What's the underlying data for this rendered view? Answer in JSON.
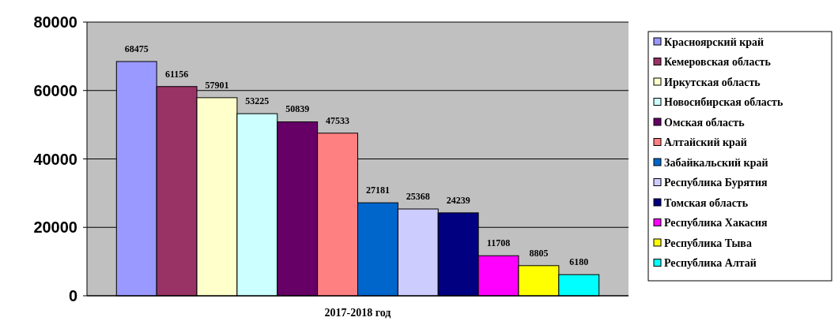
{
  "chart_data": {
    "type": "bar",
    "categories": [
      "2017-2018 год"
    ],
    "series": [
      {
        "name": "Красноярский край",
        "color": "#9999ff",
        "values": [
          68475
        ]
      },
      {
        "name": "Кемеровская область",
        "color": "#993366",
        "values": [
          61156
        ]
      },
      {
        "name": "Иркутская область",
        "color": "#ffffcc",
        "values": [
          57901
        ]
      },
      {
        "name": "Новосибирская область",
        "color": "#ccffff",
        "values": [
          53225
        ]
      },
      {
        "name": "Омская область",
        "color": "#660066",
        "values": [
          50839
        ]
      },
      {
        "name": "Алтайский край",
        "color": "#ff8080",
        "values": [
          47533
        ]
      },
      {
        "name": "Забайкальский край",
        "color": "#0066cc",
        "values": [
          27181
        ]
      },
      {
        "name": "Республика Бурятия",
        "color": "#ccccff",
        "values": [
          25368
        ]
      },
      {
        "name": "Томская область",
        "color": "#000080",
        "values": [
          24239
        ]
      },
      {
        "name": "Республика Хакасия",
        "color": "#ff00ff",
        "values": [
          11708
        ]
      },
      {
        "name": "Республика Тыва",
        "color": "#ffff00",
        "values": [
          8805
        ]
      },
      {
        "name": "Республика Алтай",
        "color": "#00ffff",
        "values": [
          6180
        ]
      }
    ],
    "ylim": [
      0,
      80000
    ],
    "yticks": [
      0,
      20000,
      40000,
      60000,
      80000
    ],
    "grid": "y",
    "legend": "right",
    "data_labels": true
  }
}
